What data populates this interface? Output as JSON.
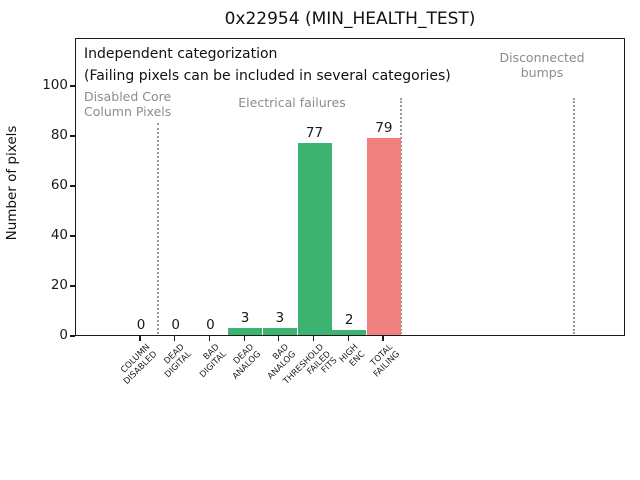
{
  "chart_data": {
    "type": "bar",
    "title": "0x22954 (MIN_HEALTH_TEST)",
    "xlabel": "",
    "ylabel": "Number of pixels",
    "categories": [
      "COLUMN\nDISABLED",
      "DEAD\nDIGITAL",
      "BAD\nDIGITAL",
      "DEAD\nANALOG",
      "BAD\nANALOG",
      "THRESHOLD\nFAILED\nFITS",
      "HIGH\nENC",
      "TOTAL\nFAILING"
    ],
    "values": [
      0,
      0,
      0,
      3,
      3,
      77,
      2,
      79
    ],
    "value_labels": [
      "0",
      "0",
      "0",
      "3",
      "3",
      "77",
      "2",
      "79"
    ],
    "bar_colors": [
      "#3cb371",
      "#3cb371",
      "#3cb371",
      "#3cb371",
      "#3cb371",
      "#3cb371",
      "#3cb371",
      "#f08080"
    ],
    "yticks": [
      0,
      20,
      40,
      60,
      80,
      100
    ],
    "ylim": [
      0,
      119
    ],
    "grid": false,
    "legend_position": "none",
    "annotations": {
      "line1": "Independent categorization",
      "line2": "(Failing pixels can be included in several categories)"
    },
    "sections": [
      {
        "label": "Disabled Core\nColumn Pixels"
      },
      {
        "label": "Electrical failures"
      },
      {
        "label": "Disconnected\nbumps"
      }
    ],
    "colors": {
      "category_green": "#3cb371",
      "total_red": "#f08080",
      "section_label_gray": "#8c8c8c",
      "divider_gray": "#999999"
    }
  }
}
